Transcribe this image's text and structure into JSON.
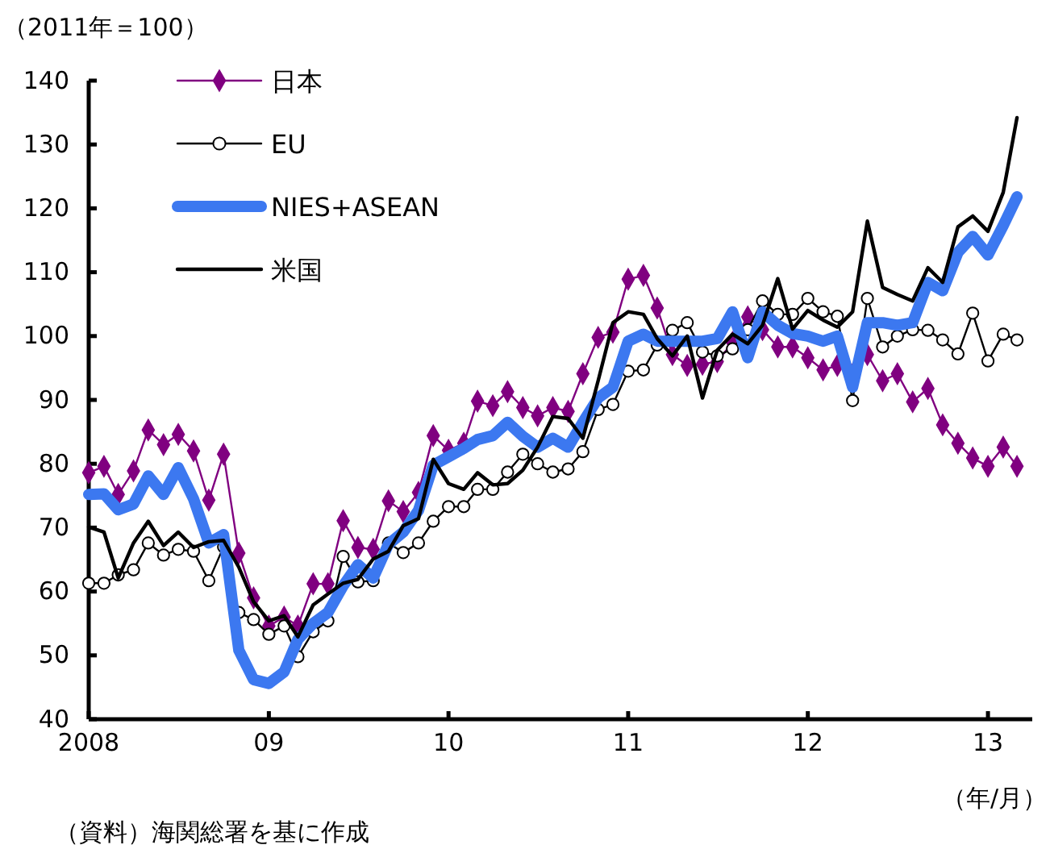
{
  "chart_data": {
    "type": "line",
    "ylabel": "（2011年＝100）",
    "xlabel": "（年/月）",
    "annotations": [
      "（資料）海関総署を基に作成"
    ],
    "x": [
      "2008-01",
      "2008-02",
      "2008-03",
      "2008-04",
      "2008-05",
      "2008-06",
      "2008-07",
      "2008-08",
      "2008-09",
      "2008-10",
      "2008-11",
      "2008-12",
      "2009-01",
      "2009-02",
      "2009-03",
      "2009-04",
      "2009-05",
      "2009-06",
      "2009-07",
      "2009-08",
      "2009-09",
      "2009-10",
      "2009-11",
      "2009-12",
      "2010-01",
      "2010-02",
      "2010-03",
      "2010-04",
      "2010-05",
      "2010-06",
      "2010-07",
      "2010-08",
      "2010-09",
      "2010-10",
      "2010-11",
      "2010-12",
      "2011-01",
      "2011-02",
      "2011-03",
      "2011-04",
      "2011-05",
      "2011-06",
      "2011-07",
      "2011-08",
      "2011-09",
      "2011-10",
      "2011-11",
      "2011-12",
      "2012-01",
      "2012-02",
      "2012-03",
      "2012-04",
      "2012-05",
      "2012-06",
      "2012-07",
      "2012-08",
      "2012-09",
      "2012-10",
      "2012-11",
      "2012-12",
      "2013-01",
      "2013-02",
      "2013-03"
    ],
    "xlim": [
      "2008-01",
      "2013-04"
    ],
    "xticks": [
      {
        "value": "2008-01",
        "label": "2008"
      },
      {
        "value": "2009-01",
        "label": "09"
      },
      {
        "value": "2010-01",
        "label": "10"
      },
      {
        "value": "2011-01",
        "label": "11"
      },
      {
        "value": "2012-01",
        "label": "12"
      },
      {
        "value": "2013-01",
        "label": "13"
      }
    ],
    "ylim": [
      40,
      140
    ],
    "yticks": [
      40,
      50,
      60,
      70,
      80,
      90,
      100,
      110,
      120,
      130,
      140
    ],
    "grid": false,
    "legend": "top left",
    "line_style": "solid",
    "series": [
      {
        "name": "日本",
        "color": "#800080",
        "marker": "diamond",
        "values": [
          78.6,
          79.6,
          75.2,
          78.9,
          85.3,
          83,
          84.6,
          82,
          74.3,
          81.5,
          66,
          59,
          54.6,
          56,
          54.6,
          61.2,
          61.2,
          71.1,
          66.9,
          66.6,
          74.2,
          72.5,
          75.5,
          84.4,
          82.1,
          83.2,
          89.8,
          89.1,
          91.3,
          88.8,
          87.5,
          88.8,
          88.2,
          94.1,
          99.8,
          100.6,
          108.9,
          109.5,
          104.4,
          97.1,
          95.4,
          95.6,
          96,
          99,
          103,
          101,
          98.3,
          98.3,
          96.6,
          94.7,
          95.4,
          94,
          97.1,
          93,
          94.1,
          89.7,
          91.8,
          86.1,
          83.2,
          80.9,
          79.6,
          82.6,
          79.6
        ]
      },
      {
        "name": "EU",
        "color": "#000000",
        "marker": "circle",
        "values": [
          61.3,
          61.3,
          62.6,
          63.4,
          67.6,
          65.7,
          66.6,
          66.3,
          61.7,
          67,
          56.7,
          55.6,
          53.3,
          54.6,
          49.8,
          53.7,
          55.4,
          65.5,
          61.5,
          61.7,
          67.6,
          66.1,
          67.6,
          71,
          73.3,
          73.3,
          76,
          76,
          78.7,
          81.5,
          80,
          78.7,
          79.2,
          81.9,
          88.5,
          89.3,
          94.5,
          94.7,
          98.6,
          100.9,
          102.1,
          97.5,
          96.9,
          98,
          101,
          105.5,
          103.4,
          103.4,
          105.9,
          103.8,
          103.1,
          89.9,
          105.9,
          98.3,
          100,
          101,
          100.9,
          99.4,
          97.2,
          103.6,
          96.1,
          100.3,
          99.4
        ]
      },
      {
        "name": "NIES+ASEAN",
        "color": "#3c78f0",
        "marker": "none",
        "values": [
          75.2,
          75.3,
          72.8,
          73.7,
          78.1,
          75.2,
          79.4,
          74.5,
          67.6,
          68.9,
          50.8,
          46.2,
          45.6,
          47.4,
          52.5,
          55,
          56.7,
          60.9,
          64.2,
          62.1,
          67.4,
          69.3,
          72.7,
          79.8,
          81.1,
          82.4,
          83.8,
          84.4,
          86.5,
          84.3,
          82.6,
          84,
          82.6,
          86.5,
          90.3,
          92,
          99.2,
          100.3,
          99.2,
          99.2,
          99.2,
          99.2,
          99.6,
          103.8,
          96.6,
          103.8,
          101.7,
          100.4,
          100,
          99.2,
          100,
          92,
          102.1,
          102.1,
          101.7,
          102.1,
          108.4,
          107.1,
          113.1,
          115.6,
          112.7,
          117.3,
          121.8
        ]
      },
      {
        "name": "米国",
        "color": "#000000",
        "marker": "none",
        "values": [
          70.1,
          69.3,
          62.1,
          67.6,
          71,
          67.2,
          69.3,
          66.9,
          67.8,
          68,
          63.8,
          58.4,
          55.4,
          56.2,
          52.9,
          57.9,
          59.6,
          61.3,
          61.9,
          65.1,
          66.3,
          70.3,
          71.4,
          80.7,
          76.9,
          76,
          78.6,
          76.7,
          76.9,
          79,
          82.6,
          87.4,
          87.1,
          84,
          93,
          102.1,
          103.8,
          103.4,
          99.6,
          96.9,
          100,
          90.3,
          97.8,
          100.3,
          98.8,
          101.7,
          109,
          101.1,
          104,
          102.5,
          101.4,
          103.8,
          118,
          107.6,
          106.5,
          105.5,
          110.7,
          108.4,
          117.1,
          118.8,
          116.4,
          122.5,
          134.2
        ]
      }
    ]
  }
}
